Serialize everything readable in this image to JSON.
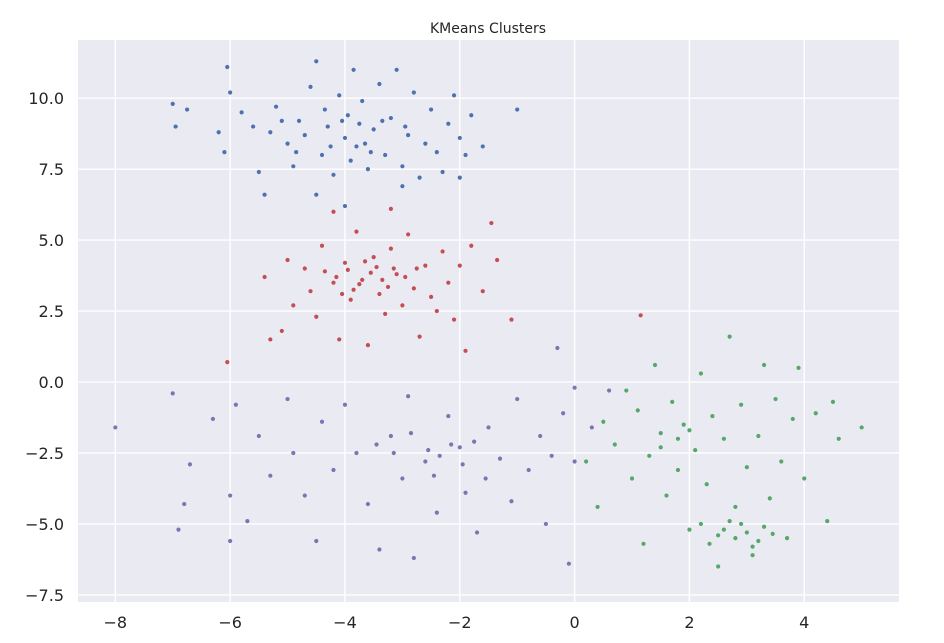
{
  "chart_data": {
    "type": "scatter",
    "title": "KMeans Clusters",
    "xlabel": "",
    "ylabel": "",
    "xlim": [
      -8.65,
      5.65
    ],
    "ylim": [
      -7.75,
      12.05
    ],
    "xticks": [
      -8,
      -6,
      -4,
      -2,
      0,
      2,
      4
    ],
    "xtick_labels": [
      "−8",
      "−6",
      "−4",
      "−2",
      "0",
      "2",
      "4"
    ],
    "yticks": [
      -7.5,
      -5.0,
      -2.5,
      0.0,
      2.5,
      5.0,
      7.5,
      10.0
    ],
    "ytick_labels": [
      "−7.5",
      "−5.0",
      "−2.5",
      "0.0",
      "2.5",
      "5.0",
      "7.5",
      "10.0"
    ],
    "grid": true,
    "background": "#eaeaf2",
    "series": [
      {
        "color": "#4c72b0",
        "points": [
          [
            -7.0,
            9.8
          ],
          [
            -6.95,
            9.0
          ],
          [
            -6.75,
            9.6
          ],
          [
            -6.05,
            11.1
          ],
          [
            -6.0,
            10.2
          ],
          [
            -6.2,
            8.8
          ],
          [
            -6.1,
            8.1
          ],
          [
            -5.8,
            9.5
          ],
          [
            -5.6,
            9.0
          ],
          [
            -5.5,
            7.4
          ],
          [
            -5.3,
            8.8
          ],
          [
            -5.2,
            9.7
          ],
          [
            -5.0,
            8.4
          ],
          [
            -4.9,
            7.6
          ],
          [
            -4.8,
            9.2
          ],
          [
            -4.6,
            10.4
          ],
          [
            -4.5,
            11.3
          ],
          [
            -4.4,
            8.0
          ],
          [
            -4.3,
            9.0
          ],
          [
            -4.2,
            7.3
          ],
          [
            -4.1,
            10.1
          ],
          [
            -4.0,
            8.6
          ],
          [
            -3.95,
            9.4
          ],
          [
            -3.9,
            7.8
          ],
          [
            -3.85,
            11.0
          ],
          [
            -3.8,
            8.3
          ],
          [
            -3.7,
            9.9
          ],
          [
            -3.6,
            7.5
          ],
          [
            -3.5,
            8.9
          ],
          [
            -3.4,
            10.5
          ],
          [
            -3.3,
            8.0
          ],
          [
            -3.2,
            9.3
          ],
          [
            -3.1,
            11.0
          ],
          [
            -3.0,
            7.6
          ],
          [
            -2.9,
            8.7
          ],
          [
            -2.8,
            10.2
          ],
          [
            -2.7,
            7.2
          ],
          [
            -2.6,
            8.4
          ],
          [
            -2.5,
            9.6
          ],
          [
            -2.4,
            8.1
          ],
          [
            -2.3,
            7.4
          ],
          [
            -2.2,
            9.1
          ],
          [
            -2.1,
            10.1
          ],
          [
            -2.0,
            8.6
          ],
          [
            -1.9,
            8.0
          ],
          [
            -1.8,
            9.4
          ],
          [
            -1.6,
            8.3
          ],
          [
            -1.0,
            9.6
          ],
          [
            -4.0,
            6.2
          ],
          [
            -4.5,
            6.6
          ],
          [
            -5.4,
            6.6
          ],
          [
            -3.0,
            6.9
          ],
          [
            -2.0,
            7.2
          ],
          [
            -4.7,
            8.7
          ],
          [
            -4.25,
            8.3
          ],
          [
            -3.55,
            8.1
          ],
          [
            -3.35,
            9.2
          ],
          [
            -2.95,
            9.0
          ],
          [
            -3.75,
            9.1
          ],
          [
            -4.35,
            9.6
          ],
          [
            -4.85,
            8.1
          ],
          [
            -5.1,
            9.2
          ],
          [
            -3.65,
            8.4
          ],
          [
            -4.05,
            9.2
          ]
        ]
      },
      {
        "color": "#c44e52",
        "points": [
          [
            -6.05,
            0.7
          ],
          [
            -5.4,
            3.7
          ],
          [
            -5.3,
            1.5
          ],
          [
            -5.1,
            1.8
          ],
          [
            -5.0,
            4.3
          ],
          [
            -4.9,
            2.7
          ],
          [
            -4.7,
            4.0
          ],
          [
            -4.6,
            3.2
          ],
          [
            -4.5,
            2.3
          ],
          [
            -4.4,
            4.8
          ],
          [
            -4.2,
            3.5
          ],
          [
            -4.1,
            1.5
          ],
          [
            -4.0,
            4.2
          ],
          [
            -3.9,
            2.9
          ],
          [
            -3.8,
            5.3
          ],
          [
            -3.7,
            3.6
          ],
          [
            -3.6,
            1.3
          ],
          [
            -3.5,
            4.4
          ],
          [
            -3.4,
            3.1
          ],
          [
            -3.3,
            2.4
          ],
          [
            -3.2,
            4.7
          ],
          [
            -3.1,
            3.8
          ],
          [
            -3.0,
            2.7
          ],
          [
            -2.9,
            5.2
          ],
          [
            -2.8,
            3.3
          ],
          [
            -2.7,
            1.6
          ],
          [
            -2.6,
            4.1
          ],
          [
            -2.5,
            3.0
          ],
          [
            -2.4,
            2.5
          ],
          [
            -2.3,
            4.6
          ],
          [
            -2.2,
            3.5
          ],
          [
            -2.1,
            2.2
          ],
          [
            -2.0,
            4.1
          ],
          [
            -1.9,
            1.1
          ],
          [
            -1.8,
            4.8
          ],
          [
            -1.6,
            3.2
          ],
          [
            -1.45,
            5.6
          ],
          [
            -1.35,
            4.3
          ],
          [
            -1.1,
            2.2
          ],
          [
            1.15,
            2.35
          ],
          [
            -4.2,
            6.0
          ],
          [
            -3.2,
            6.1
          ],
          [
            -4.15,
            3.7
          ],
          [
            -3.95,
            3.95
          ],
          [
            -3.75,
            3.45
          ],
          [
            -3.55,
            3.85
          ],
          [
            -3.35,
            3.6
          ],
          [
            -3.15,
            4.0
          ],
          [
            -2.95,
            3.7
          ],
          [
            -3.45,
            4.05
          ],
          [
            -3.85,
            3.25
          ],
          [
            -3.25,
            3.35
          ],
          [
            -2.75,
            4.0
          ],
          [
            -4.35,
            3.9
          ],
          [
            -4.05,
            3.1
          ],
          [
            -3.65,
            4.25
          ]
        ]
      },
      {
        "color": "#8172b2",
        "points": [
          [
            -8.0,
            -1.6
          ],
          [
            -7.0,
            -0.4
          ],
          [
            -6.7,
            -2.9
          ],
          [
            -6.8,
            -4.3
          ],
          [
            -6.9,
            -5.2
          ],
          [
            -6.0,
            -5.6
          ],
          [
            -6.0,
            -4.0
          ],
          [
            -6.3,
            -1.3
          ],
          [
            -5.9,
            -0.8
          ],
          [
            -5.7,
            -4.9
          ],
          [
            -5.5,
            -1.9
          ],
          [
            -5.3,
            -3.3
          ],
          [
            -5.0,
            -0.6
          ],
          [
            -4.9,
            -2.5
          ],
          [
            -4.7,
            -4.0
          ],
          [
            -4.5,
            -5.6
          ],
          [
            -4.4,
            -1.4
          ],
          [
            -4.2,
            -3.1
          ],
          [
            -4.0,
            -0.8
          ],
          [
            -3.8,
            -2.5
          ],
          [
            -3.6,
            -4.3
          ],
          [
            -3.4,
            -5.9
          ],
          [
            -3.2,
            -1.9
          ],
          [
            -3.0,
            -3.4
          ],
          [
            -2.9,
            -0.5
          ],
          [
            -2.8,
            -6.2
          ],
          [
            -2.6,
            -2.8
          ],
          [
            -2.4,
            -4.6
          ],
          [
            -2.2,
            -1.2
          ],
          [
            -2.0,
            -2.3
          ],
          [
            -1.9,
            -3.9
          ],
          [
            -1.7,
            -5.3
          ],
          [
            -1.5,
            -1.6
          ],
          [
            -1.3,
            -2.7
          ],
          [
            -1.1,
            -4.2
          ],
          [
            -1.0,
            -0.6
          ],
          [
            -0.8,
            -3.1
          ],
          [
            -0.6,
            -1.9
          ],
          [
            -0.5,
            -5.0
          ],
          [
            -0.4,
            -2.6
          ],
          [
            -0.3,
            1.2
          ],
          [
            -0.2,
            -1.1
          ],
          [
            0.0,
            -2.8
          ],
          [
            0.0,
            -0.2
          ],
          [
            0.3,
            -1.6
          ],
          [
            0.6,
            -0.3
          ],
          [
            -0.1,
            -6.4
          ],
          [
            -2.35,
            -2.6
          ],
          [
            -2.15,
            -2.2
          ],
          [
            -1.95,
            -2.9
          ],
          [
            -2.55,
            -2.4
          ],
          [
            -1.75,
            -2.1
          ],
          [
            -2.45,
            -3.3
          ],
          [
            -3.15,
            -2.5
          ],
          [
            -1.55,
            -3.4
          ],
          [
            -3.45,
            -2.2
          ],
          [
            -2.85,
            -1.8
          ]
        ]
      },
      {
        "color": "#55a868",
        "points": [
          [
            0.2,
            -2.8
          ],
          [
            0.4,
            -4.4
          ],
          [
            0.5,
            -1.4
          ],
          [
            0.7,
            -2.2
          ],
          [
            0.9,
            -0.3
          ],
          [
            1.0,
            -3.4
          ],
          [
            1.1,
            -1.0
          ],
          [
            1.2,
            -5.7
          ],
          [
            1.3,
            -2.6
          ],
          [
            1.4,
            0.6
          ],
          [
            1.5,
            -1.8
          ],
          [
            1.6,
            -4.0
          ],
          [
            1.7,
            -0.7
          ],
          [
            1.8,
            -3.1
          ],
          [
            1.9,
            -1.5
          ],
          [
            2.0,
            -5.2
          ],
          [
            2.1,
            -2.4
          ],
          [
            2.2,
            0.3
          ],
          [
            2.3,
            -3.6
          ],
          [
            2.4,
            -1.2
          ],
          [
            2.5,
            -6.5
          ],
          [
            2.6,
            -2.0
          ],
          [
            2.7,
            1.6
          ],
          [
            2.8,
            -4.4
          ],
          [
            2.9,
            -0.8
          ],
          [
            3.0,
            -3.0
          ],
          [
            3.1,
            -6.1
          ],
          [
            3.2,
            -1.9
          ],
          [
            3.3,
            0.6
          ],
          [
            3.4,
            -4.1
          ],
          [
            3.5,
            -0.6
          ],
          [
            3.6,
            -2.8
          ],
          [
            3.7,
            -5.5
          ],
          [
            3.8,
            -1.3
          ],
          [
            3.9,
            0.5
          ],
          [
            4.0,
            -3.4
          ],
          [
            4.2,
            -1.1
          ],
          [
            4.4,
            -4.9
          ],
          [
            4.5,
            -0.7
          ],
          [
            4.6,
            -2.0
          ],
          [
            5.0,
            -1.6
          ],
          [
            2.6,
            -5.2
          ],
          [
            2.8,
            -5.5
          ],
          [
            3.0,
            -5.3
          ],
          [
            3.2,
            -5.6
          ],
          [
            2.7,
            -4.9
          ],
          [
            2.9,
            -5.0
          ],
          [
            3.1,
            -5.8
          ],
          [
            2.5,
            -5.4
          ],
          [
            3.3,
            -5.1
          ],
          [
            1.8,
            -2.0
          ],
          [
            1.5,
            -2.3
          ],
          [
            2.0,
            -1.7
          ],
          [
            2.35,
            -5.7
          ],
          [
            3.45,
            -5.35
          ],
          [
            2.2,
            -5.0
          ]
        ]
      }
    ]
  }
}
